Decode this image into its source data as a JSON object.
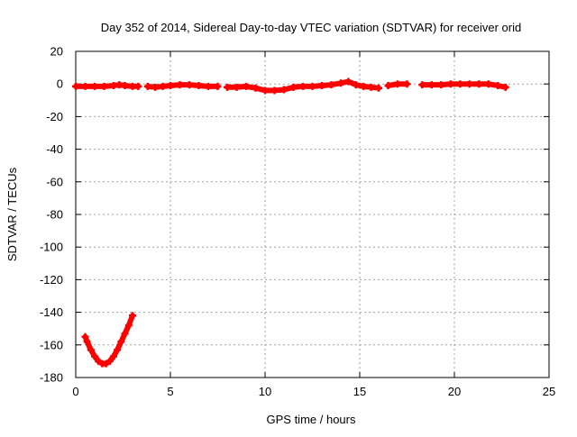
{
  "chart_data": {
    "type": "scatter",
    "title": "Day 352 of 2014, Sidereal Day-to-day VTEC variation (SDTVAR) for receiver orid",
    "xlabel": "GPS time / hours",
    "ylabel": "SDTVAR / TECUs",
    "xlim": [
      0,
      25
    ],
    "ylim": [
      -180,
      20
    ],
    "xticks": [
      0,
      5,
      10,
      15,
      20,
      25
    ],
    "yticks": [
      20,
      0,
      -20,
      -40,
      -60,
      -80,
      -100,
      -120,
      -140,
      -160,
      -180
    ],
    "grid": true,
    "series": [
      {
        "color": "#ff0000",
        "marker": "plus",
        "segments": [
          [
            [
              0.5,
              -155
            ],
            [
              0.6,
              -158
            ],
            [
              0.8,
              -163
            ],
            [
              1.0,
              -167
            ],
            [
              1.2,
              -170
            ],
            [
              1.4,
              -171.5
            ],
            [
              1.6,
              -171.5
            ],
            [
              1.8,
              -170
            ],
            [
              2.0,
              -167
            ],
            [
              2.2,
              -163
            ],
            [
              2.4,
              -158
            ],
            [
              2.6,
              -153
            ],
            [
              2.8,
              -148
            ],
            [
              3.0,
              -142
            ]
          ],
          [
            [
              0.0,
              -1.5
            ],
            [
              0.5,
              -1.5
            ],
            [
              1.0,
              -1.5
            ],
            [
              1.5,
              -1.5
            ],
            [
              2.0,
              -1
            ],
            [
              2.3,
              -0.5
            ],
            [
              2.6,
              -1
            ],
            [
              3.0,
              -1.5
            ],
            [
              3.3,
              -1.5
            ]
          ],
          [
            [
              3.8,
              -1.5
            ],
            [
              4.2,
              -2
            ],
            [
              4.6,
              -1.5
            ],
            [
              5.0,
              -1
            ],
            [
              5.5,
              -0.5
            ],
            [
              6.0,
              -0.5
            ],
            [
              6.5,
              -1
            ],
            [
              7.0,
              -1.5
            ],
            [
              7.5,
              -1.5
            ]
          ],
          [
            [
              8.0,
              -2
            ],
            [
              8.5,
              -2
            ],
            [
              9.0,
              -1.5
            ],
            [
              9.5,
              -2.5
            ],
            [
              10.0,
              -4
            ],
            [
              10.5,
              -4
            ],
            [
              11.0,
              -3.5
            ],
            [
              11.5,
              -2
            ],
            [
              12.0,
              -1.5
            ],
            [
              12.5,
              -1.5
            ],
            [
              13.0,
              -1
            ],
            [
              13.5,
              -0.5
            ],
            [
              14.0,
              0.5
            ],
            [
              14.4,
              1.5
            ],
            [
              14.8,
              -0.5
            ],
            [
              15.2,
              -1.5
            ],
            [
              15.6,
              -2
            ],
            [
              16.0,
              -2.5
            ]
          ],
          [
            [
              16.5,
              -1
            ],
            [
              17.0,
              0
            ],
            [
              17.5,
              0
            ]
          ],
          [
            [
              18.3,
              -0.5
            ],
            [
              18.8,
              -0.5
            ],
            [
              19.3,
              -0.5
            ],
            [
              19.8,
              0
            ],
            [
              20.3,
              0
            ],
            [
              20.8,
              0
            ],
            [
              21.3,
              0
            ],
            [
              21.8,
              0
            ],
            [
              22.3,
              -1
            ],
            [
              22.7,
              -2
            ]
          ]
        ]
      }
    ]
  }
}
